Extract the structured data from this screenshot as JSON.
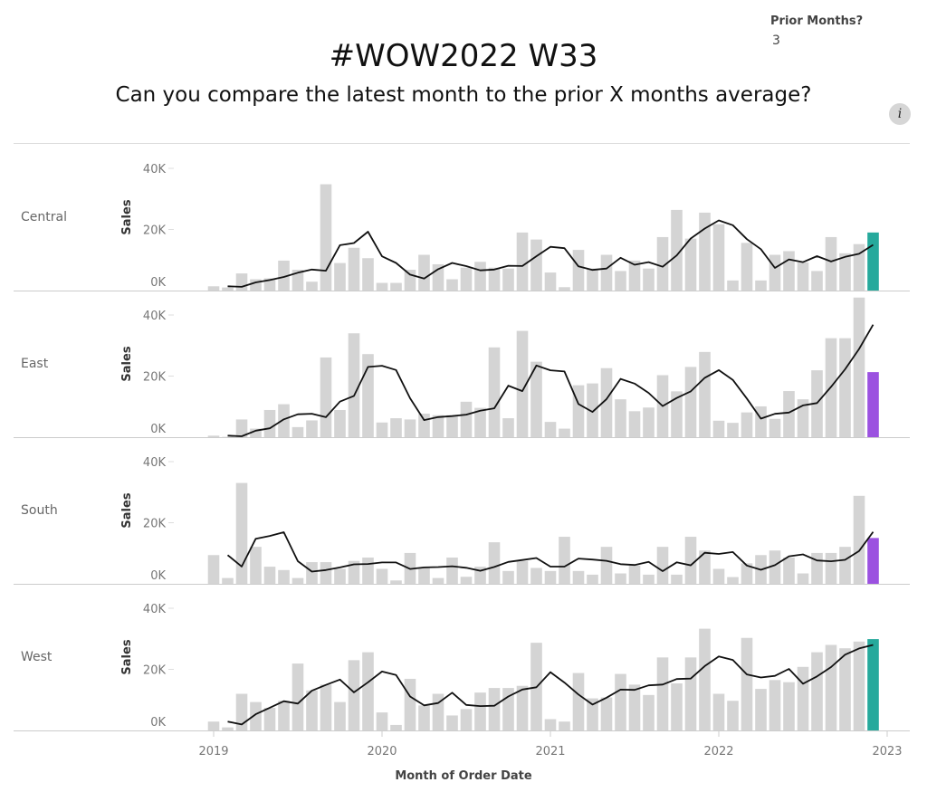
{
  "header": {
    "title": "#WOW2022 W33",
    "subtitle": "Can you compare the latest month to the prior X months average?",
    "info_icon": "i"
  },
  "parameter": {
    "label": "Prior Months?",
    "value": "3"
  },
  "colors": {
    "bar": "#d4d4d4",
    "above": "#26a99c",
    "below": "#9b51e0",
    "line": "#111111"
  },
  "chart_data": {
    "type": "bar",
    "title": "#WOW2022 W33",
    "xlabel": "Month of Order Date",
    "ylabel": "Sales",
    "ylim": [
      0,
      47000
    ],
    "y_ticks": [
      "0K",
      "20K",
      "40K"
    ],
    "y_tick_values": [
      0,
      20000,
      40000
    ],
    "x_ticks": [
      "2019",
      "2020",
      "2021",
      "2022",
      "2023"
    ],
    "x_start": "2019-01",
    "months": 48,
    "prior_months": 3,
    "line_series": "average of prior 3 months",
    "series": [
      {
        "name": "Central",
        "values": [
          1.4,
          1.0,
          5.6,
          3.7,
          4.0,
          9.8,
          6.8,
          2.9,
          34.8,
          9.0,
          14.0,
          10.6,
          2.5,
          2.5,
          6.8,
          11.7,
          8.6,
          3.7,
          7.5,
          9.4,
          7.5,
          7.2,
          19.0,
          16.7,
          5.9,
          1.1,
          13.3,
          7.2,
          11.7,
          6.4,
          9.8,
          7.2,
          17.5,
          26.4,
          17.0,
          25.5,
          21.7,
          3.3,
          15.6,
          3.3,
          11.7,
          12.9,
          9.2,
          6.4,
          17.5,
          12.2,
          15.2,
          19.0
        ]
      },
      {
        "name": "East",
        "values": [
          0.5,
          0.1,
          5.8,
          2.8,
          8.9,
          10.8,
          3.3,
          5.5,
          26.1,
          8.9,
          34.0,
          27.2,
          4.8,
          6.2,
          5.8,
          7.7,
          7.2,
          7.2,
          11.6,
          9.6,
          29.4,
          6.2,
          34.8,
          24.7,
          5.0,
          2.8,
          17.0,
          17.6,
          22.6,
          12.4,
          8.5,
          9.7,
          20.3,
          15.0,
          23.0,
          27.9,
          5.4,
          4.7,
          8.1,
          10.1,
          6.0,
          15.1,
          12.4,
          21.9,
          32.4,
          32.4,
          45.7,
          21.3
        ]
      },
      {
        "name": "South",
        "values": [
          9.4,
          1.9,
          33.0,
          12.1,
          5.6,
          4.5,
          1.9,
          7.1,
          7.1,
          4.9,
          7.5,
          8.6,
          4.9,
          1.1,
          10.1,
          5.2,
          1.9,
          8.6,
          2.3,
          5.6,
          13.6,
          4.2,
          7.5,
          5.2,
          4.2,
          15.4,
          4.2,
          3.0,
          12.1,
          3.4,
          6.0,
          3.0,
          12.1,
          3.0,
          15.4,
          10.9,
          4.9,
          2.2,
          6.7,
          9.4,
          10.9,
          8.6,
          3.4,
          10.1,
          10.1,
          12.1,
          28.8,
          15.0
        ]
      },
      {
        "name": "West",
        "values": [
          2.9,
          1.0,
          12.0,
          9.3,
          7.4,
          9.7,
          21.9,
          13.1,
          15.0,
          9.3,
          23.0,
          25.6,
          5.9,
          1.8,
          16.9,
          8.2,
          12.0,
          4.9,
          7.0,
          12.4,
          13.9,
          13.9,
          14.6,
          28.7,
          3.7,
          2.9,
          18.8,
          10.5,
          10.8,
          18.5,
          15.0,
          11.6,
          23.9,
          15.4,
          23.9,
          33.3,
          12.0,
          9.7,
          30.3,
          13.6,
          16.5,
          15.8,
          20.8,
          25.6,
          28.0,
          26.9,
          29.1,
          29.9
        ]
      }
    ],
    "value_units": "thousands"
  }
}
